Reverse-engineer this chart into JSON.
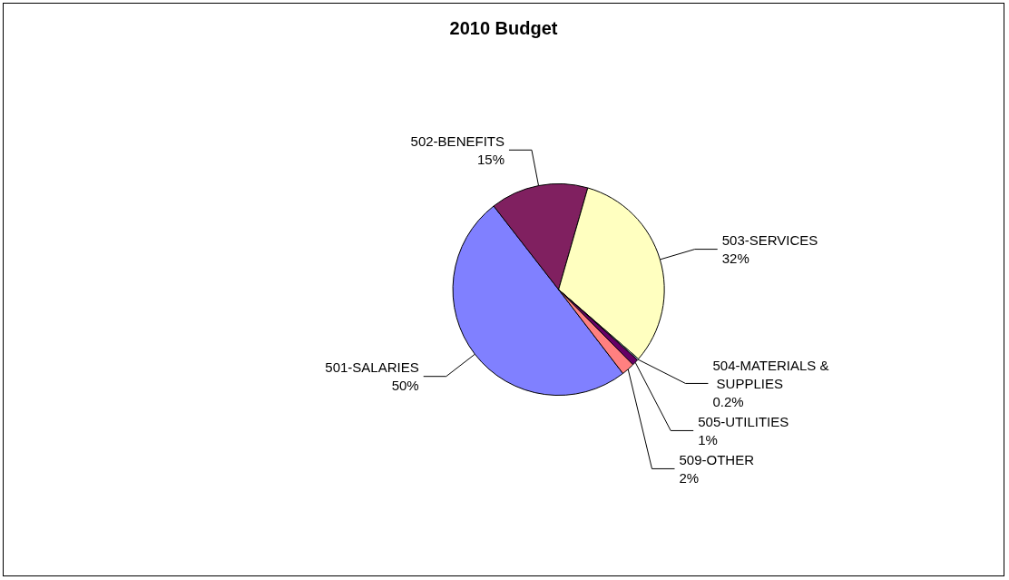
{
  "chart_data": {
    "type": "pie",
    "title": "2010 Budget",
    "categories": [
      "501-SALARIES",
      "502-BENEFITS",
      "503-SERVICES",
      "504-MATERIALS & SUPPLIES",
      "505-UTILITIES",
      "509-OTHER"
    ],
    "values": [
      50,
      15,
      32,
      0.2,
      1,
      2
    ],
    "value_labels": [
      "50%",
      "15%",
      "32%",
      "0.2%",
      "1%",
      "2%"
    ],
    "colors": [
      "#8080ff",
      "#802060",
      "#ffffc0",
      "#ccffff",
      "#660066",
      "#ff8080"
    ],
    "legend": false
  }
}
